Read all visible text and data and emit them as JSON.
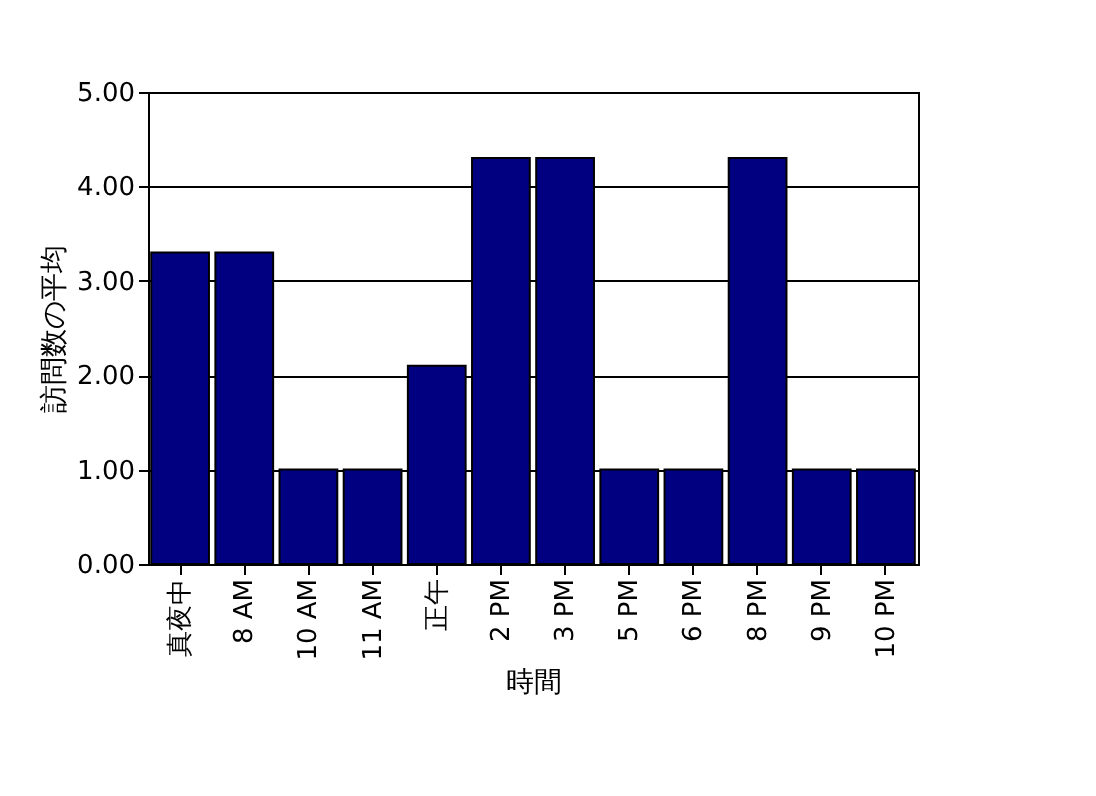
{
  "chart_data": {
    "type": "bar",
    "xlabel": "時間",
    "ylabel": "訪問数の平均",
    "categories": [
      "真夜中",
      "8 AM",
      "10 AM",
      "11 AM",
      "正午",
      "2 PM",
      "3 PM",
      "5 PM",
      "6 PM",
      "8 PM",
      "9 PM",
      "10 PM"
    ],
    "values": [
      3.3,
      3.3,
      1.0,
      1.0,
      2.1,
      4.3,
      4.3,
      1.0,
      1.0,
      4.3,
      1.0,
      1.0
    ],
    "color": "#000080",
    "ylim": [
      0,
      5
    ],
    "yticks": [
      {
        "value": 0,
        "label": "0.00"
      },
      {
        "value": 1,
        "label": "1.00"
      },
      {
        "value": 2,
        "label": "2.00"
      },
      {
        "value": 3,
        "label": "3.00"
      },
      {
        "value": 4,
        "label": "4.00"
      },
      {
        "value": 5,
        "label": "5.00"
      }
    ],
    "grid": "y"
  }
}
